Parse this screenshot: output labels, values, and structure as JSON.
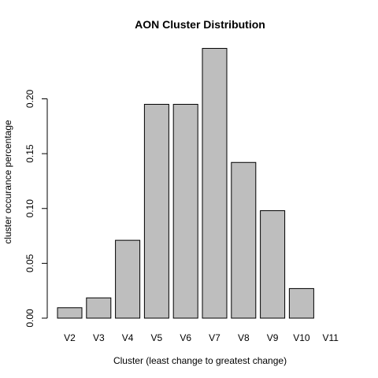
{
  "chart_data": {
    "type": "bar",
    "title": "AON Cluster Distribution",
    "xlabel": "Cluster (least change to greatest change)",
    "ylabel": "cluster occurance percentage",
    "categories": [
      "V2",
      "V3",
      "V4",
      "V5",
      "V6",
      "V7",
      "V8",
      "V9",
      "V10",
      "V11"
    ],
    "values": [
      0.0095,
      0.0185,
      0.071,
      0.195,
      0.195,
      0.246,
      0.142,
      0.098,
      0.027,
      0.0
    ],
    "yticks": [
      0.0,
      0.05,
      0.1,
      0.15,
      0.2
    ],
    "ytick_labels": [
      "0.00",
      "0.05",
      "0.10",
      "0.15",
      "0.20"
    ],
    "ylim": [
      0,
      0.25
    ],
    "grid": false,
    "colors": {
      "bar_fill": "#bebebe",
      "bar_stroke": "#000000"
    }
  }
}
